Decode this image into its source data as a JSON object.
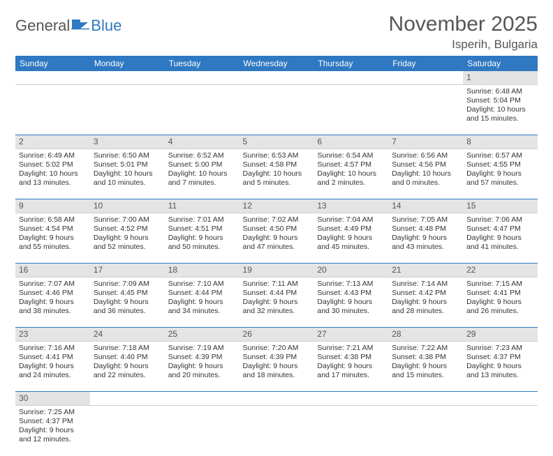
{
  "logo": {
    "general": "General",
    "blue": "Blue"
  },
  "title": "November 2025",
  "location": "Isperih, Bulgaria",
  "colors": {
    "header_bg": "#2f78c2",
    "header_text": "#ffffff",
    "daynum_bg": "#e4e4e4",
    "row_border": "#2f78c2",
    "text": "#333333",
    "logo_blue": "#2f78c2"
  },
  "weekdays": [
    "Sunday",
    "Monday",
    "Tuesday",
    "Wednesday",
    "Thursday",
    "Friday",
    "Saturday"
  ],
  "weeks": [
    {
      "nums": [
        "",
        "",
        "",
        "",
        "",
        "",
        "1"
      ],
      "details": [
        null,
        null,
        null,
        null,
        null,
        null,
        {
          "sunrise": "Sunrise: 6:48 AM",
          "sunset": "Sunset: 5:04 PM",
          "day1": "Daylight: 10 hours",
          "day2": "and 15 minutes."
        }
      ]
    },
    {
      "nums": [
        "2",
        "3",
        "4",
        "5",
        "6",
        "7",
        "8"
      ],
      "details": [
        {
          "sunrise": "Sunrise: 6:49 AM",
          "sunset": "Sunset: 5:02 PM",
          "day1": "Daylight: 10 hours",
          "day2": "and 13 minutes."
        },
        {
          "sunrise": "Sunrise: 6:50 AM",
          "sunset": "Sunset: 5:01 PM",
          "day1": "Daylight: 10 hours",
          "day2": "and 10 minutes."
        },
        {
          "sunrise": "Sunrise: 6:52 AM",
          "sunset": "Sunset: 5:00 PM",
          "day1": "Daylight: 10 hours",
          "day2": "and 7 minutes."
        },
        {
          "sunrise": "Sunrise: 6:53 AM",
          "sunset": "Sunset: 4:58 PM",
          "day1": "Daylight: 10 hours",
          "day2": "and 5 minutes."
        },
        {
          "sunrise": "Sunrise: 6:54 AM",
          "sunset": "Sunset: 4:57 PM",
          "day1": "Daylight: 10 hours",
          "day2": "and 2 minutes."
        },
        {
          "sunrise": "Sunrise: 6:56 AM",
          "sunset": "Sunset: 4:56 PM",
          "day1": "Daylight: 10 hours",
          "day2": "and 0 minutes."
        },
        {
          "sunrise": "Sunrise: 6:57 AM",
          "sunset": "Sunset: 4:55 PM",
          "day1": "Daylight: 9 hours",
          "day2": "and 57 minutes."
        }
      ]
    },
    {
      "nums": [
        "9",
        "10",
        "11",
        "12",
        "13",
        "14",
        "15"
      ],
      "details": [
        {
          "sunrise": "Sunrise: 6:58 AM",
          "sunset": "Sunset: 4:54 PM",
          "day1": "Daylight: 9 hours",
          "day2": "and 55 minutes."
        },
        {
          "sunrise": "Sunrise: 7:00 AM",
          "sunset": "Sunset: 4:52 PM",
          "day1": "Daylight: 9 hours",
          "day2": "and 52 minutes."
        },
        {
          "sunrise": "Sunrise: 7:01 AM",
          "sunset": "Sunset: 4:51 PM",
          "day1": "Daylight: 9 hours",
          "day2": "and 50 minutes."
        },
        {
          "sunrise": "Sunrise: 7:02 AM",
          "sunset": "Sunset: 4:50 PM",
          "day1": "Daylight: 9 hours",
          "day2": "and 47 minutes."
        },
        {
          "sunrise": "Sunrise: 7:04 AM",
          "sunset": "Sunset: 4:49 PM",
          "day1": "Daylight: 9 hours",
          "day2": "and 45 minutes."
        },
        {
          "sunrise": "Sunrise: 7:05 AM",
          "sunset": "Sunset: 4:48 PM",
          "day1": "Daylight: 9 hours",
          "day2": "and 43 minutes."
        },
        {
          "sunrise": "Sunrise: 7:06 AM",
          "sunset": "Sunset: 4:47 PM",
          "day1": "Daylight: 9 hours",
          "day2": "and 41 minutes."
        }
      ]
    },
    {
      "nums": [
        "16",
        "17",
        "18",
        "19",
        "20",
        "21",
        "22"
      ],
      "details": [
        {
          "sunrise": "Sunrise: 7:07 AM",
          "sunset": "Sunset: 4:46 PM",
          "day1": "Daylight: 9 hours",
          "day2": "and 38 minutes."
        },
        {
          "sunrise": "Sunrise: 7:09 AM",
          "sunset": "Sunset: 4:45 PM",
          "day1": "Daylight: 9 hours",
          "day2": "and 36 minutes."
        },
        {
          "sunrise": "Sunrise: 7:10 AM",
          "sunset": "Sunset: 4:44 PM",
          "day1": "Daylight: 9 hours",
          "day2": "and 34 minutes."
        },
        {
          "sunrise": "Sunrise: 7:11 AM",
          "sunset": "Sunset: 4:44 PM",
          "day1": "Daylight: 9 hours",
          "day2": "and 32 minutes."
        },
        {
          "sunrise": "Sunrise: 7:13 AM",
          "sunset": "Sunset: 4:43 PM",
          "day1": "Daylight: 9 hours",
          "day2": "and 30 minutes."
        },
        {
          "sunrise": "Sunrise: 7:14 AM",
          "sunset": "Sunset: 4:42 PM",
          "day1": "Daylight: 9 hours",
          "day2": "and 28 minutes."
        },
        {
          "sunrise": "Sunrise: 7:15 AM",
          "sunset": "Sunset: 4:41 PM",
          "day1": "Daylight: 9 hours",
          "day2": "and 26 minutes."
        }
      ]
    },
    {
      "nums": [
        "23",
        "24",
        "25",
        "26",
        "27",
        "28",
        "29"
      ],
      "details": [
        {
          "sunrise": "Sunrise: 7:16 AM",
          "sunset": "Sunset: 4:41 PM",
          "day1": "Daylight: 9 hours",
          "day2": "and 24 minutes."
        },
        {
          "sunrise": "Sunrise: 7:18 AM",
          "sunset": "Sunset: 4:40 PM",
          "day1": "Daylight: 9 hours",
          "day2": "and 22 minutes."
        },
        {
          "sunrise": "Sunrise: 7:19 AM",
          "sunset": "Sunset: 4:39 PM",
          "day1": "Daylight: 9 hours",
          "day2": "and 20 minutes."
        },
        {
          "sunrise": "Sunrise: 7:20 AM",
          "sunset": "Sunset: 4:39 PM",
          "day1": "Daylight: 9 hours",
          "day2": "and 18 minutes."
        },
        {
          "sunrise": "Sunrise: 7:21 AM",
          "sunset": "Sunset: 4:38 PM",
          "day1": "Daylight: 9 hours",
          "day2": "and 17 minutes."
        },
        {
          "sunrise": "Sunrise: 7:22 AM",
          "sunset": "Sunset: 4:38 PM",
          "day1": "Daylight: 9 hours",
          "day2": "and 15 minutes."
        },
        {
          "sunrise": "Sunrise: 7:23 AM",
          "sunset": "Sunset: 4:37 PM",
          "day1": "Daylight: 9 hours",
          "day2": "and 13 minutes."
        }
      ]
    },
    {
      "nums": [
        "30",
        "",
        "",
        "",
        "",
        "",
        ""
      ],
      "details": [
        {
          "sunrise": "Sunrise: 7:25 AM",
          "sunset": "Sunset: 4:37 PM",
          "day1": "Daylight: 9 hours",
          "day2": "and 12 minutes."
        },
        null,
        null,
        null,
        null,
        null,
        null
      ]
    }
  ]
}
